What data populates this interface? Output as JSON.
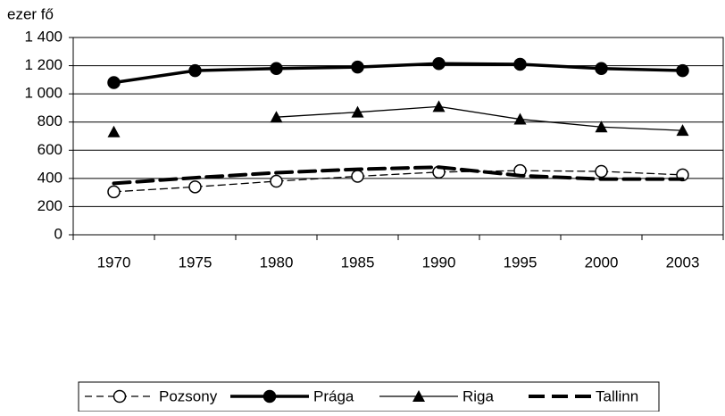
{
  "chart_data": {
    "type": "line",
    "y_axis_label": "ezer fő",
    "categories": [
      "1970",
      "1975",
      "1980",
      "1985",
      "1990",
      "1995",
      "2000",
      "2003"
    ],
    "ylim": [
      0,
      1400
    ],
    "yticks": [
      0,
      200,
      400,
      600,
      800,
      {
        "value": 1000,
        "label": "1 000"
      },
      {
        "value": 1200,
        "label": "1 200"
      },
      {
        "value": 1400,
        "label": "1 400"
      }
    ],
    "grid": true,
    "legend": "bottom",
    "series": [
      {
        "name": "Pozsony",
        "color": "#000000",
        "marker": "circle-open",
        "dash": "8,5",
        "line_width": 1.3,
        "values": [
          305,
          340,
          380,
          415,
          445,
          455,
          450,
          425
        ]
      },
      {
        "name": "Prága",
        "color": "#000000",
        "marker": "circle",
        "dash": "none",
        "line_width": 3.5,
        "values": [
          1080,
          1165,
          1180,
          1190,
          1215,
          1210,
          1180,
          1165
        ]
      },
      {
        "name": "Riga",
        "color": "#000000",
        "marker": "triangle",
        "dash": "none",
        "line_width": 1.3,
        "values": [
          730,
          null,
          835,
          870,
          910,
          820,
          765,
          740
        ]
      },
      {
        "name": "Tallinn",
        "color": "#000000",
        "marker": "none",
        "dash": "18,8",
        "line_width": 4,
        "values": [
          365,
          405,
          440,
          465,
          480,
          420,
          395,
          395
        ]
      }
    ]
  }
}
